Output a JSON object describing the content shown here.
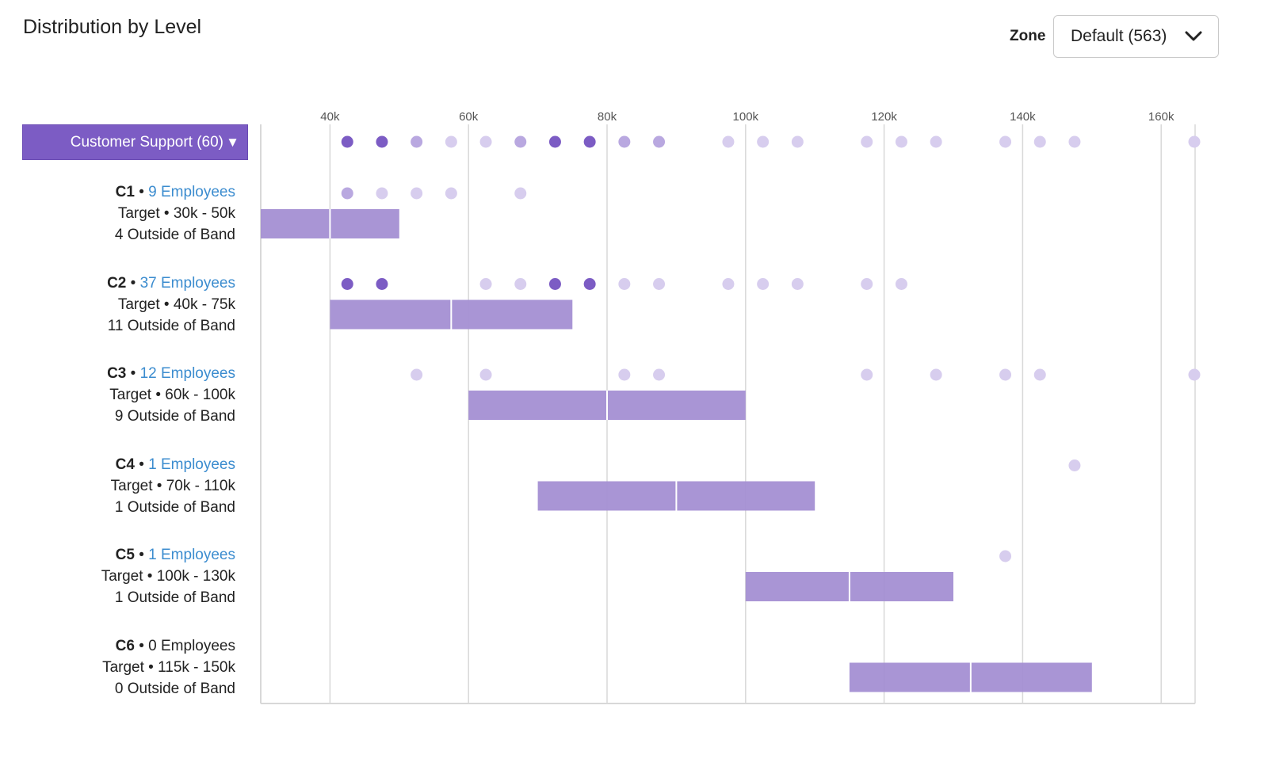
{
  "header": {
    "title": "Distribution by Level",
    "zone_label": "Zone",
    "zone_value": "Default (563)"
  },
  "department": {
    "label": "Customer Support (60)",
    "caret": "▼"
  },
  "colors": {
    "accent": "#7c5cc4",
    "band": "#a48fd3",
    "dot_dark": "#7c5cc4",
    "dot_light": "#d7cdee",
    "dot_mid": "#b9a8e0",
    "link": "#3b8ccf",
    "grid": "#d8d8d8"
  },
  "chart_data": {
    "type": "scatter",
    "x_ticks": [
      {
        "value": 40,
        "label": "40k"
      },
      {
        "value": 60,
        "label": "60k"
      },
      {
        "value": 80,
        "label": "80k"
      },
      {
        "value": 100,
        "label": "100k"
      },
      {
        "value": 120,
        "label": "120k"
      },
      {
        "value": 140,
        "label": "140k"
      },
      {
        "value": 160,
        "label": "160k"
      }
    ],
    "xlim": [
      30,
      165
    ],
    "unit": "k",
    "all_points": [
      {
        "x": 42.5,
        "shade": "dark"
      },
      {
        "x": 47.5,
        "shade": "dark"
      },
      {
        "x": 52.5,
        "shade": "mid"
      },
      {
        "x": 57.5,
        "shade": "light"
      },
      {
        "x": 62.5,
        "shade": "light"
      },
      {
        "x": 67.5,
        "shade": "mid"
      },
      {
        "x": 72.5,
        "shade": "dark"
      },
      {
        "x": 77.5,
        "shade": "dark"
      },
      {
        "x": 82.5,
        "shade": "mid"
      },
      {
        "x": 87.5,
        "shade": "mid"
      },
      {
        "x": 97.5,
        "shade": "light"
      },
      {
        "x": 102.5,
        "shade": "light"
      },
      {
        "x": 107.5,
        "shade": "light"
      },
      {
        "x": 117.5,
        "shade": "light"
      },
      {
        "x": 122.5,
        "shade": "light"
      },
      {
        "x": 127.5,
        "shade": "light"
      },
      {
        "x": 137.5,
        "shade": "light"
      },
      {
        "x": 142.5,
        "shade": "light"
      },
      {
        "x": 147.5,
        "shade": "light"
      },
      {
        "x": 165,
        "shade": "light"
      }
    ],
    "levels": [
      {
        "level": "C1",
        "employees": "9 Employees",
        "has_employees": true,
        "target": "Target • 30k - 50k",
        "outside": "4 Outside of Band",
        "band": [
          30,
          50
        ],
        "mid": 40,
        "points": [
          {
            "x": 42.5,
            "shade": "mid"
          },
          {
            "x": 47.5,
            "shade": "light"
          },
          {
            "x": 52.5,
            "shade": "light"
          },
          {
            "x": 57.5,
            "shade": "light"
          },
          {
            "x": 67.5,
            "shade": "light"
          }
        ]
      },
      {
        "level": "C2",
        "employees": "37 Employees",
        "has_employees": true,
        "target": "Target • 40k - 75k",
        "outside": "11 Outside of Band",
        "band": [
          40,
          75
        ],
        "mid": 57.5,
        "points": [
          {
            "x": 42.5,
            "shade": "dark"
          },
          {
            "x": 47.5,
            "shade": "dark"
          },
          {
            "x": 62.5,
            "shade": "light"
          },
          {
            "x": 67.5,
            "shade": "light"
          },
          {
            "x": 72.5,
            "shade": "dark"
          },
          {
            "x": 77.5,
            "shade": "dark"
          },
          {
            "x": 82.5,
            "shade": "light"
          },
          {
            "x": 87.5,
            "shade": "light"
          },
          {
            "x": 97.5,
            "shade": "light"
          },
          {
            "x": 102.5,
            "shade": "light"
          },
          {
            "x": 107.5,
            "shade": "light"
          },
          {
            "x": 117.5,
            "shade": "light"
          },
          {
            "x": 122.5,
            "shade": "light"
          }
        ]
      },
      {
        "level": "C3",
        "employees": "12 Employees",
        "has_employees": true,
        "target": "Target • 60k - 100k",
        "outside": "9 Outside of Band",
        "band": [
          60,
          100
        ],
        "mid": 80,
        "points": [
          {
            "x": 52.5,
            "shade": "light"
          },
          {
            "x": 62.5,
            "shade": "light"
          },
          {
            "x": 82.5,
            "shade": "light"
          },
          {
            "x": 87.5,
            "shade": "light"
          },
          {
            "x": 117.5,
            "shade": "light"
          },
          {
            "x": 127.5,
            "shade": "light"
          },
          {
            "x": 137.5,
            "shade": "light"
          },
          {
            "x": 142.5,
            "shade": "light"
          },
          {
            "x": 165,
            "shade": "light"
          }
        ]
      },
      {
        "level": "C4",
        "employees": "1 Employees",
        "has_employees": true,
        "target": "Target • 70k - 110k",
        "outside": "1 Outside of Band",
        "band": [
          70,
          110
        ],
        "mid": 90,
        "points": [
          {
            "x": 147.5,
            "shade": "light"
          }
        ]
      },
      {
        "level": "C5",
        "employees": "1 Employees",
        "has_employees": true,
        "target": "Target • 100k - 130k",
        "outside": "1 Outside of Band",
        "band": [
          100,
          130
        ],
        "mid": 115,
        "points": [
          {
            "x": 137.5,
            "shade": "light"
          }
        ]
      },
      {
        "level": "C6",
        "employees": "0 Employees",
        "has_employees": false,
        "target": "Target • 115k - 150k",
        "outside": "0 Outside of Band",
        "band": [
          115,
          150
        ],
        "mid": 132.5,
        "points": []
      }
    ]
  }
}
